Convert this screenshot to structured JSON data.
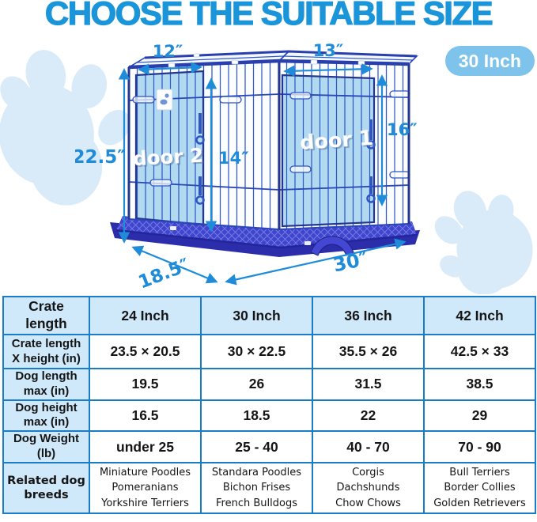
{
  "title": "CHOOSE THE SUITABLE SIZE",
  "badge": "30 Inch",
  "diagram": {
    "door1": "door 1",
    "door2": "door 2",
    "dim_door2_width": "12″",
    "dim_door1_width": "13″",
    "dim_crate_height": "22.5″",
    "dim_front_height": "14″",
    "dim_door1_height": "16″",
    "dim_depth": "18.5″",
    "dim_length": "30″"
  },
  "table": {
    "corner_label": "Crate length",
    "columns": [
      "24 Inch",
      "30 Inch",
      "36 Inch",
      "42 Inch"
    ],
    "rows": [
      {
        "label": "Crate length X height (in)",
        "values": [
          "23.5 × 20.5",
          "30 × 22.5",
          "35.5 × 26",
          "42.5 × 33"
        ]
      },
      {
        "label": "Dog length max (in)",
        "values": [
          "19.5",
          "26",
          "31.5",
          "38.5"
        ]
      },
      {
        "label": "Dog height max (in)",
        "values": [
          "16.5",
          "18.5",
          "22",
          "29"
        ]
      },
      {
        "label": "Dog Weight (lb)",
        "values": [
          "under 25",
          "25 - 40",
          "40 - 70",
          "70 - 90"
        ]
      },
      {
        "label": "Related dog breeds",
        "values": [
          [
            "Miniature Poodles",
            "Pomeranians",
            "Yorkshire Terriers"
          ],
          [
            "Standara Poodles",
            "Bichon Frises",
            "French Bulldogs"
          ],
          [
            "Corgis",
            "Dachshunds",
            "Chow Chows"
          ],
          [
            "Bull Terriers",
            "Border Collies",
            "Golden Retrievers"
          ]
        ]
      }
    ]
  },
  "colors": {
    "accent_blue": "#1b95d9",
    "dimension_blue": "#1e8cd8",
    "wire_blue": "#3158c8",
    "tray_blue": "#3239c0",
    "door_highlight": "#a9d6ef",
    "table_border": "#1a7cc7",
    "header_bg": "#cfe9fa",
    "badge_bg": "#7ec3ec",
    "paw_blue": "#d9ebf9"
  }
}
